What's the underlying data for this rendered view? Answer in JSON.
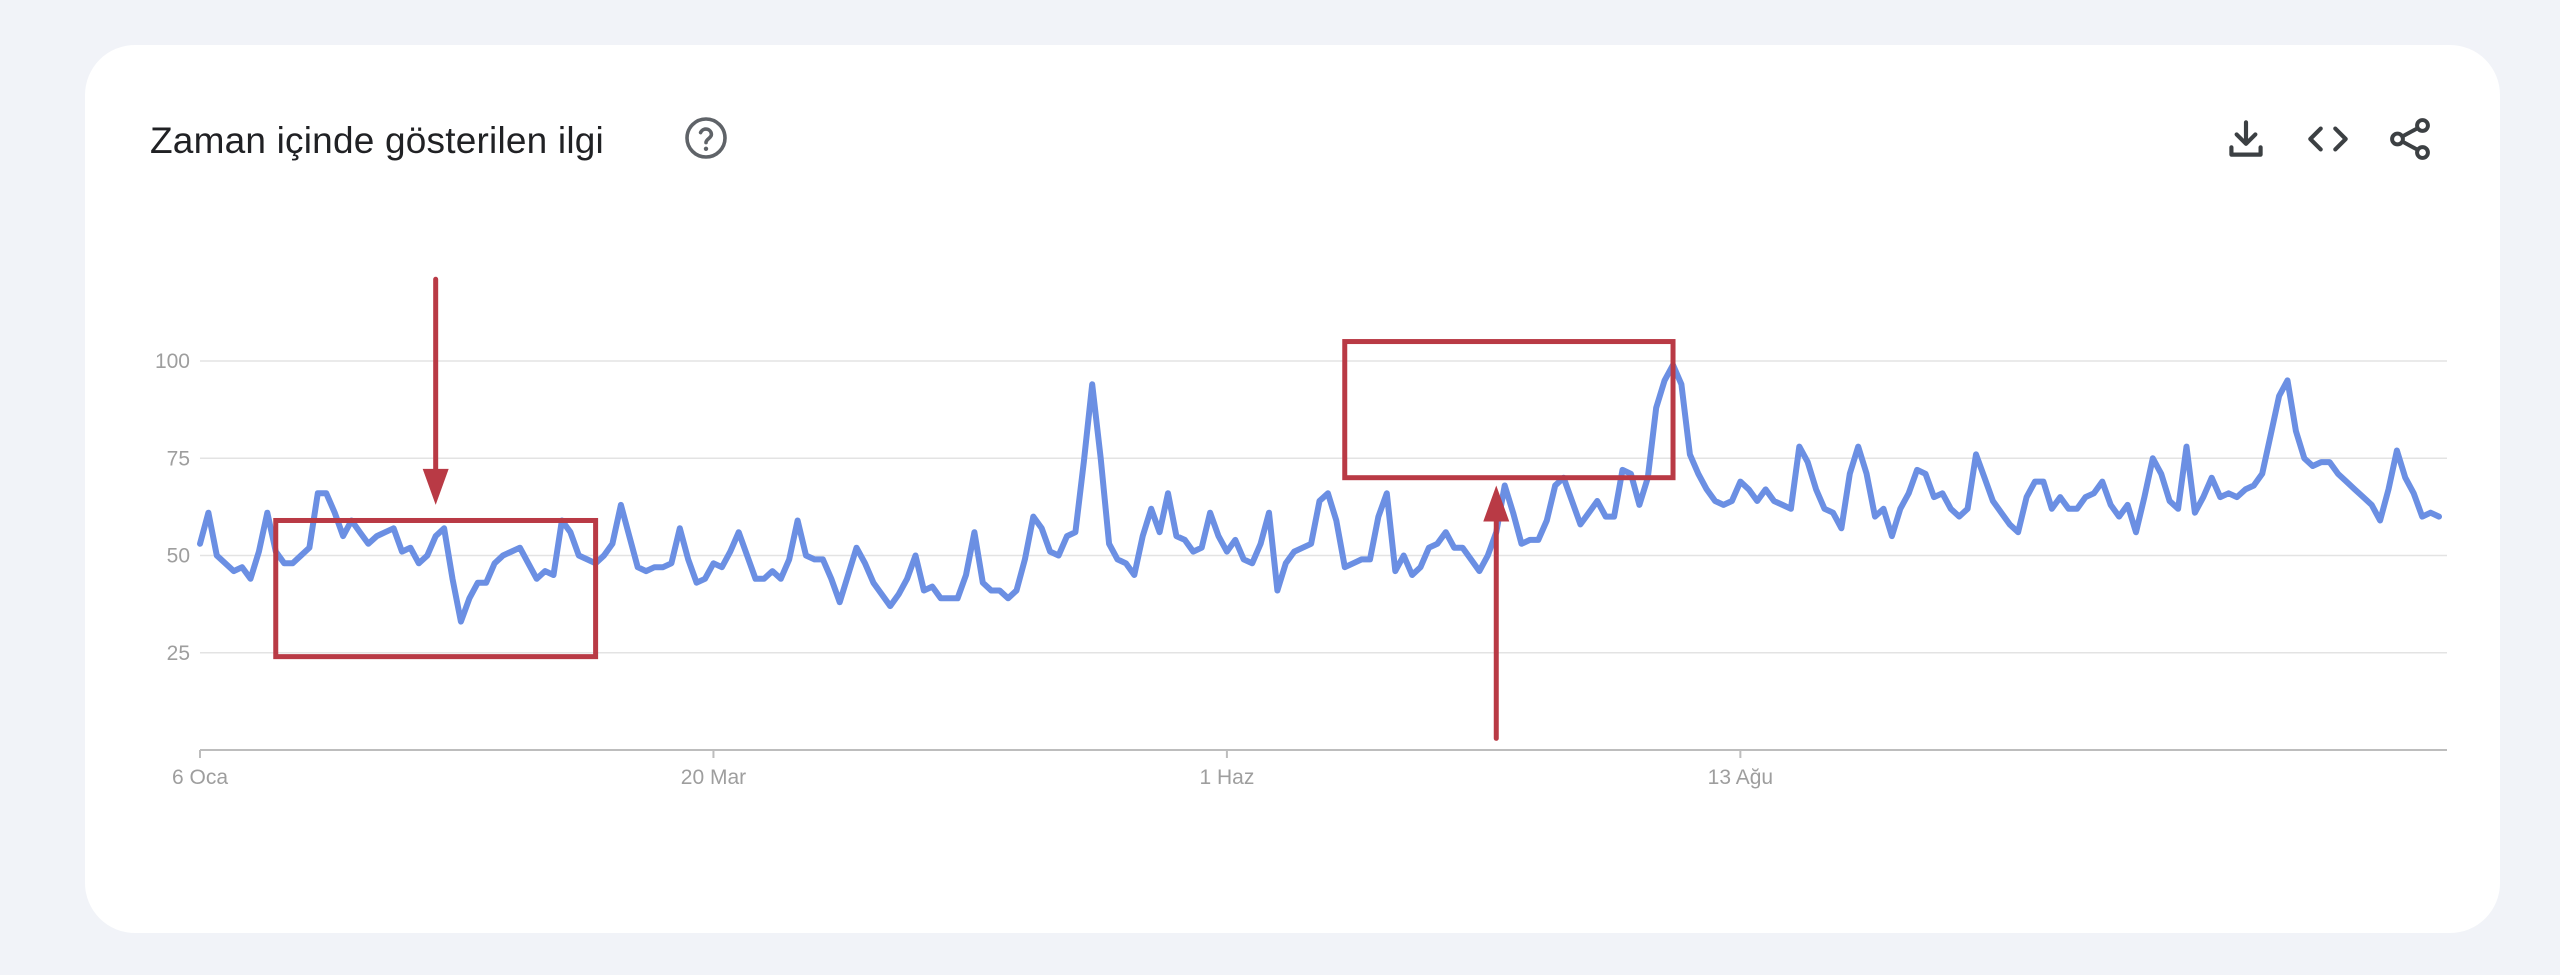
{
  "card": {
    "title": "Zaman içinde gösterilen ilgi",
    "help_icon": "help-circle-icon",
    "actions": [
      {
        "name": "download-icon"
      },
      {
        "name": "embed-code-icon"
      },
      {
        "name": "share-icon"
      }
    ]
  },
  "colors": {
    "line": "#6b8fe3",
    "annotation": "#b93a45",
    "grid": "#e3e3e3",
    "tick_text": "#9e9e9e"
  },
  "chart_data": {
    "type": "line",
    "title": "Zaman içinde gösterilen ilgi",
    "xlabel": "",
    "ylabel": "",
    "ylim": [
      0,
      100
    ],
    "yticks": [
      25,
      50,
      75,
      100
    ],
    "xticks": [
      "6 Oca",
      "20 Mar",
      "1 Haz",
      "13 Ağu"
    ],
    "grid": true,
    "series": [
      {
        "values": [
          53,
          61,
          50,
          48,
          46,
          47,
          44,
          51,
          61,
          51,
          48,
          48,
          50,
          52,
          66,
          66,
          61,
          55,
          59,
          56,
          53,
          55,
          56,
          57,
          51,
          52,
          48,
          50,
          55,
          57,
          44,
          33,
          39,
          43,
          43,
          48,
          50,
          51,
          52,
          48,
          44,
          46,
          45,
          59,
          56,
          50,
          49,
          48,
          50,
          53,
          63,
          55,
          47,
          46,
          47,
          47,
          48,
          57,
          49,
          43,
          44,
          48,
          47,
          51,
          56,
          50,
          44,
          44,
          46,
          44,
          49,
          59,
          50,
          49,
          49,
          44,
          38,
          45,
          52,
          48,
          43,
          40,
          37,
          40,
          44,
          50,
          41,
          42,
          39,
          39,
          39,
          45,
          56,
          43,
          41,
          41,
          39,
          41,
          49,
          60,
          57,
          51,
          50,
          55,
          56,
          74,
          94,
          75,
          53,
          49,
          48,
          45,
          55,
          62,
          56,
          66,
          55,
          54,
          51,
          52,
          61,
          55,
          51,
          54,
          49,
          48,
          53,
          61,
          41,
          48,
          51,
          52,
          53,
          64,
          66,
          59,
          47,
          48,
          49,
          49,
          60,
          66,
          46,
          50,
          45,
          47,
          52,
          53,
          56,
          52,
          52,
          49,
          46,
          50,
          56,
          68,
          61,
          53,
          54,
          54,
          59,
          68,
          70,
          64,
          58,
          61,
          64,
          60,
          60,
          72,
          71,
          63,
          70,
          88,
          95,
          99,
          94,
          76,
          71,
          67,
          64,
          63,
          64,
          69,
          67,
          64,
          67,
          64,
          63,
          62,
          78,
          74,
          67,
          62,
          61,
          57,
          71,
          78,
          71,
          60,
          62,
          55,
          62,
          66,
          72,
          71,
          65,
          66,
          62,
          60,
          62,
          76,
          70,
          64,
          61,
          58,
          56,
          65,
          69,
          69,
          62,
          65,
          62,
          62,
          65,
          66,
          69,
          63,
          60,
          63,
          56,
          65,
          75,
          71,
          64,
          62,
          78,
          61,
          65,
          70,
          65,
          66,
          65,
          67,
          68,
          71,
          81,
          91,
          95,
          82,
          75,
          73,
          74,
          74,
          71,
          69,
          67,
          65,
          63,
          59,
          67,
          77,
          70,
          66,
          60,
          61,
          60
        ]
      }
    ],
    "annotations": [
      {
        "type": "box",
        "x_range": [
          9,
          47
        ],
        "y_range": [
          24,
          59
        ]
      },
      {
        "type": "box",
        "x_range": [
          136,
          175
        ],
        "y_range": [
          70,
          105
        ]
      },
      {
        "type": "arrow",
        "direction": "down",
        "x": 28,
        "y_from": 121,
        "y_to": 63
      },
      {
        "type": "arrow",
        "direction": "up",
        "x": 154,
        "y_from": 3,
        "y_to": 68
      }
    ]
  }
}
